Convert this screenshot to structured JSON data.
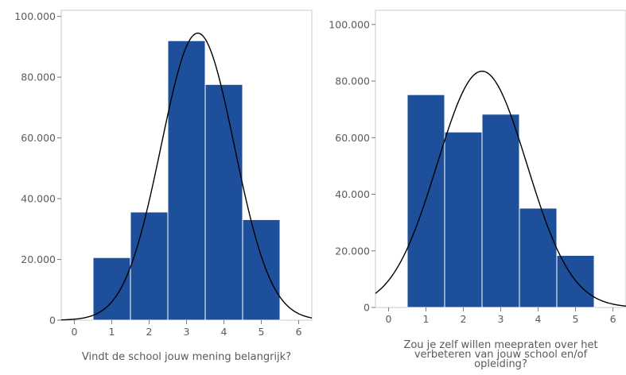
{
  "chart_data": [
    {
      "type": "bar",
      "subtype": "histogram-with-normal-curve",
      "categories": [
        1,
        2,
        3,
        4,
        5
      ],
      "values": [
        20600,
        35600,
        92000,
        77600,
        33100
      ],
      "xlabel": "Vindt de school jouw mening belangrijk?",
      "xlabel_lines": [
        "Vindt de school jouw mening belangrijk?"
      ],
      "ylabel": "",
      "xlim": [
        -0.35,
        6.35
      ],
      "ylim": [
        0,
        102000
      ],
      "xticks": [
        0,
        1,
        2,
        3,
        4,
        5,
        6
      ],
      "yticks": [
        0,
        20000,
        40000,
        60000,
        80000,
        100000
      ],
      "ytick_labels": [
        "0",
        "20.000",
        "40.000",
        "60.000",
        "80.000",
        "100.000"
      ],
      "normal_curve": {
        "mean": 3.3,
        "sd": 0.98,
        "peak": 94500
      },
      "grid": false,
      "bar_color": "#1e4f9a",
      "curve_color": "#000000"
    },
    {
      "type": "bar",
      "subtype": "histogram-with-normal-curve",
      "categories": [
        1,
        2,
        3,
        4,
        5
      ],
      "values": [
        75200,
        62000,
        68300,
        35100,
        18400
      ],
      "xlabel": "Zou je zelf willen meepraten over het verbeteren van jouw school en/of opleiding?",
      "xlabel_lines": [
        "Zou je zelf willen meepraten over het",
        "verbeteren van jouw school en/of",
        "opleiding?"
      ],
      "ylabel": "",
      "xlim": [
        -0.35,
        6.35
      ],
      "ylim": [
        0,
        105000
      ],
      "xticks": [
        0,
        1,
        2,
        3,
        4,
        5,
        6
      ],
      "yticks": [
        0,
        20000,
        40000,
        60000,
        80000,
        100000
      ],
      "ytick_labels": [
        "0",
        "20.000",
        "40.000",
        "60.000",
        "80.000",
        "100.000"
      ],
      "normal_curve": {
        "mean": 2.5,
        "sd": 1.2,
        "peak": 83500
      },
      "grid": false,
      "bar_color": "#1e4f9a",
      "curve_color": "#000000"
    }
  ]
}
